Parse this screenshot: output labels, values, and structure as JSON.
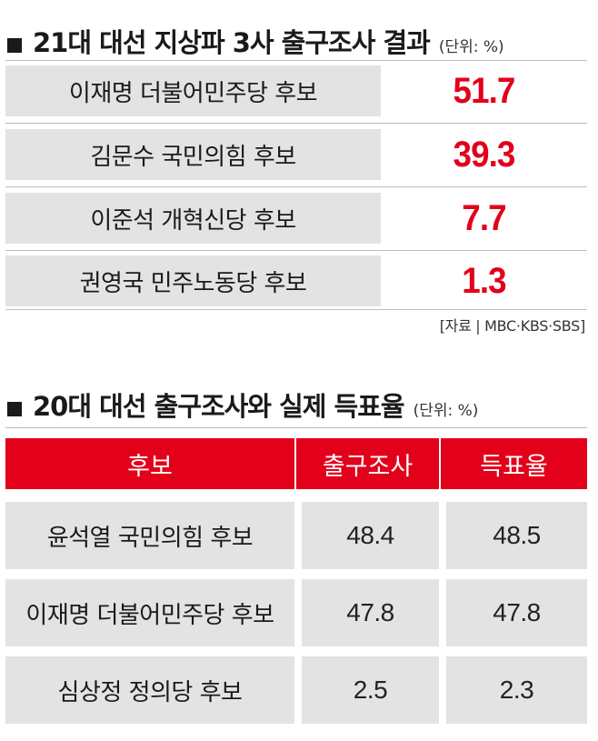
{
  "section1": {
    "title": "21대 대선 지상파 3사 출구조사 결과",
    "unit": "(단위: %)",
    "rows": [
      {
        "name": "이재명 더불어민주당 후보",
        "value": "51.7"
      },
      {
        "name": "김문수 국민의힘 후보",
        "value": "39.3"
      },
      {
        "name": "이준석 개혁신당 후보",
        "value": "7.7"
      },
      {
        "name": "권영국 민주노동당 후보",
        "value": "1.3"
      }
    ],
    "source": "[자료 | MBC·KBS·SBS]"
  },
  "section2": {
    "title": "20대 대선 출구조사와 실제 득표율",
    "unit": "(단위: %)",
    "headers": [
      "후보",
      "출구조사",
      "득표율"
    ],
    "rows": [
      {
        "name": "윤석열 국민의힘 후보",
        "exit_poll": "48.4",
        "actual": "48.5"
      },
      {
        "name": "이재명 더불어민주당 후보",
        "exit_poll": "47.8",
        "actual": "47.8"
      },
      {
        "name": "심상정 정의당 후보",
        "exit_poll": "2.5",
        "actual": "2.3"
      }
    ]
  },
  "colors": {
    "accent_red": "#e2001a",
    "cell_gray": "#e3e3e3",
    "text": "#1a1a1a"
  }
}
